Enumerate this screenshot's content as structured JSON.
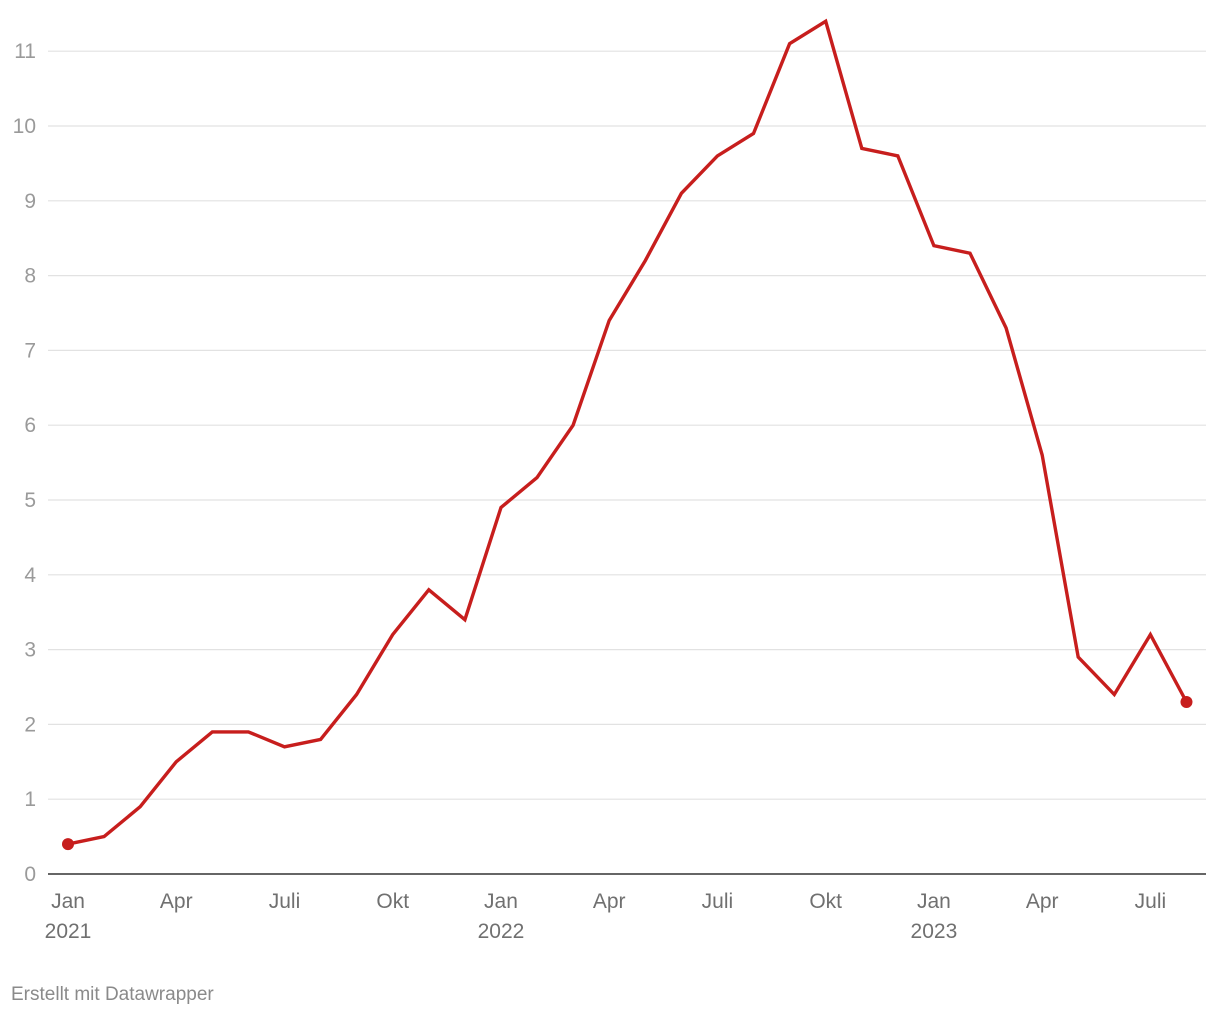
{
  "chart_data": {
    "type": "line",
    "x": [
      "2021-01",
      "2021-02",
      "2021-03",
      "2021-04",
      "2021-05",
      "2021-06",
      "2021-07",
      "2021-08",
      "2021-09",
      "2021-10",
      "2021-11",
      "2021-12",
      "2022-01",
      "2022-02",
      "2022-03",
      "2022-04",
      "2022-05",
      "2022-06",
      "2022-07",
      "2022-08",
      "2022-09",
      "2022-10",
      "2022-11",
      "2022-12",
      "2023-01",
      "2023-02",
      "2023-03",
      "2023-04",
      "2023-05",
      "2023-06",
      "2023-07",
      "2023-08"
    ],
    "series": [
      {
        "values": [
          0.4,
          0.5,
          0.9,
          1.5,
          1.9,
          1.9,
          1.7,
          1.8,
          2.4,
          3.2,
          3.8,
          3.4,
          4.9,
          5.3,
          6.0,
          7.4,
          8.2,
          9.1,
          9.6,
          9.9,
          11.1,
          11.4,
          9.7,
          9.6,
          8.4,
          8.3,
          7.3,
          5.6,
          2.9,
          2.4,
          3.2,
          2.3
        ]
      }
    ],
    "ylim": [
      0,
      11
    ],
    "yticks": [
      "0",
      "1",
      "2",
      "3",
      "4",
      "5",
      "6",
      "7",
      "8",
      "9",
      "10",
      "11"
    ],
    "xticks": [
      {
        "x": "2021-01",
        "label": "Jan",
        "year": "2021"
      },
      {
        "x": "2021-04",
        "label": "Apr",
        "year": ""
      },
      {
        "x": "2021-07",
        "label": "Juli",
        "year": ""
      },
      {
        "x": "2021-10",
        "label": "Okt",
        "year": ""
      },
      {
        "x": "2022-01",
        "label": "Jan",
        "year": "2022"
      },
      {
        "x": "2022-04",
        "label": "Apr",
        "year": ""
      },
      {
        "x": "2022-07",
        "label": "Juli",
        "year": ""
      },
      {
        "x": "2022-10",
        "label": "Okt",
        "year": ""
      },
      {
        "x": "2023-01",
        "label": "Jan",
        "year": "2023"
      },
      {
        "x": "2023-04",
        "label": "Apr",
        "year": ""
      },
      {
        "x": "2023-07",
        "label": "Juli",
        "year": ""
      }
    ],
    "grid": true,
    "line_color": "#c71e1d",
    "endpoint_markers": true
  },
  "footer": {
    "credit": "Erstellt mit Datawrapper"
  }
}
